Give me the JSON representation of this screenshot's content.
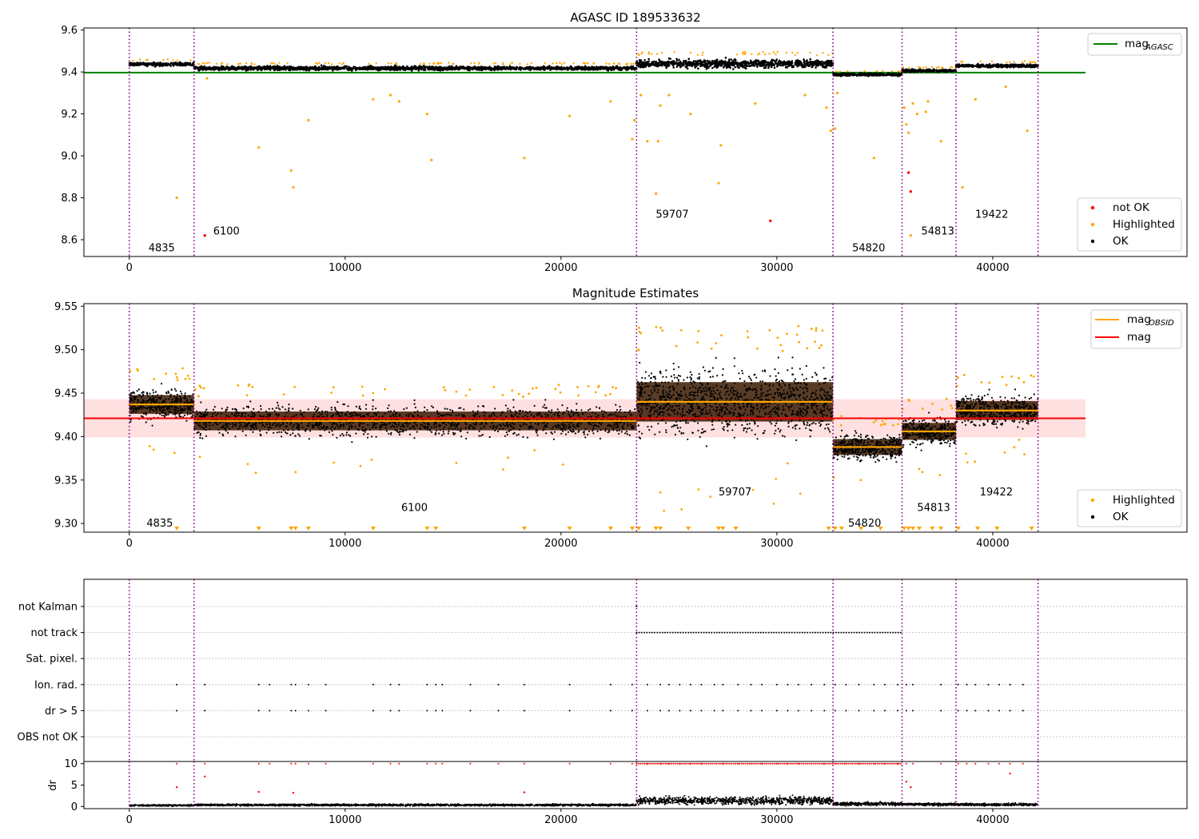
{
  "chart_data": [
    {
      "type": "scatter",
      "title": "AGASC ID 189533632",
      "xlim": [
        -2100,
        49000
      ],
      "ylim": [
        8.52,
        9.61
      ],
      "xticks": [
        0,
        10000,
        20000,
        30000,
        40000
      ],
      "yticks": [
        8.6,
        8.8,
        9.0,
        9.2,
        9.4,
        9.6
      ],
      "ytick_labels": [
        "8.6",
        "8.8",
        "9.0",
        "9.2",
        "9.4",
        "9.6"
      ],
      "grid": false,
      "reference_line": {
        "name": "mag_AGASC",
        "y": 9.397,
        "x": [
          -2100,
          44300
        ],
        "color": "#008000"
      },
      "segments": [
        {
          "x0": 0,
          "x1": 3000,
          "mag": 9.437,
          "spread": 0.012,
          "label": "4835",
          "label_y": 8.56
        },
        {
          "x0": 3000,
          "x1": 23500,
          "mag": 9.418,
          "spread": 0.013,
          "label": "6100",
          "label_y": 8.64
        },
        {
          "x0": 23500,
          "x1": 32600,
          "mag": 9.44,
          "spread": 0.028,
          "label": "59707",
          "label_y": 8.72
        },
        {
          "x0": 32600,
          "x1": 35800,
          "mag": 9.388,
          "spread": 0.009,
          "label": "54820",
          "label_y": 8.56
        },
        {
          "x0": 35800,
          "x1": 38300,
          "mag": 9.406,
          "spread": 0.009,
          "label": "54813",
          "label_y": 8.64
        },
        {
          "x0": 38300,
          "x1": 42100,
          "mag": 9.43,
          "spread": 0.011,
          "label": "19422",
          "label_y": 8.72
        }
      ],
      "dividers": [
        0,
        3000,
        23500,
        32600,
        35800,
        38300,
        42100
      ],
      "outliers_highlighted": [
        [
          2200,
          8.8
        ],
        [
          3600,
          9.37
        ],
        [
          6000,
          9.04
        ],
        [
          7500,
          8.93
        ],
        [
          7600,
          8.85
        ],
        [
          8300,
          9.17
        ],
        [
          11300,
          9.27
        ],
        [
          12100,
          9.29
        ],
        [
          12500,
          9.26
        ],
        [
          13800,
          9.2
        ],
        [
          14000,
          8.98
        ],
        [
          18300,
          8.99
        ],
        [
          20400,
          9.19
        ],
        [
          22300,
          9.26
        ],
        [
          23400,
          9.17
        ],
        [
          23300,
          9.08
        ],
        [
          23700,
          9.29
        ],
        [
          24000,
          9.07
        ],
        [
          24400,
          8.82
        ],
        [
          24600,
          9.24
        ],
        [
          24500,
          9.07
        ],
        [
          25000,
          9.29
        ],
        [
          26000,
          9.2
        ],
        [
          27400,
          9.05
        ],
        [
          27300,
          8.87
        ],
        [
          29000,
          9.25
        ],
        [
          31300,
          9.29
        ],
        [
          32300,
          9.23
        ],
        [
          32500,
          9.12
        ],
        [
          32700,
          9.13
        ],
        [
          32800,
          9.3
        ],
        [
          34500,
          8.99
        ],
        [
          35900,
          9.23
        ],
        [
          36000,
          9.15
        ],
        [
          36100,
          9.11
        ],
        [
          36200,
          8.62
        ],
        [
          36300,
          9.25
        ],
        [
          36500,
          9.2
        ],
        [
          36900,
          9.21
        ],
        [
          37000,
          9.26
        ],
        [
          37600,
          9.07
        ],
        [
          38600,
          8.85
        ],
        [
          39200,
          9.27
        ],
        [
          40600,
          9.33
        ],
        [
          41600,
          9.12
        ]
      ],
      "outliers_not_ok": [
        [
          3500,
          8.62
        ],
        [
          29700,
          8.69
        ],
        [
          36100,
          8.92
        ],
        [
          36200,
          8.83
        ]
      ],
      "legend_line": {
        "label": "mag",
        "sub": "AGASC"
      },
      "legend_points": [
        "not OK",
        "Highlighted",
        "OK"
      ],
      "colors": {
        "ok": "#000000",
        "highlighted": "#ffa500",
        "not_ok": "#ff0000",
        "divider": "#800080"
      }
    },
    {
      "type": "scatter",
      "title": "Magnitude Estimates",
      "xlim": [
        -2100,
        49000
      ],
      "ylim": [
        9.29,
        9.553
      ],
      "xticks": [
        0,
        10000,
        20000,
        30000,
        40000
      ],
      "yticks": [
        9.3,
        9.35,
        9.4,
        9.45,
        9.5,
        9.55
      ],
      "ytick_labels": [
        "9.30",
        "9.35",
        "9.40",
        "9.45",
        "9.50",
        "9.55"
      ],
      "grid": false,
      "mean_line": {
        "name": "mag",
        "y": 9.421,
        "band": [
          9.399,
          9.443
        ],
        "x": [
          -2100,
          44300
        ],
        "color": "#ff0000"
      },
      "segment_labels": [
        {
          "label": "4835",
          "x": 800,
          "y": 9.3
        },
        {
          "label": "6100",
          "x": 12600,
          "y": 9.318
        },
        {
          "label": "59707",
          "x": 27300,
          "y": 9.336
        },
        {
          "label": "54820",
          "x": 33300,
          "y": 9.3
        },
        {
          "label": "54813",
          "x": 36500,
          "y": 9.318
        },
        {
          "label": "19422",
          "x": 39400,
          "y": 9.336
        }
      ],
      "floor_markers": [
        2200,
        6000,
        7500,
        7700,
        8300,
        11300,
        13800,
        14200,
        18300,
        20400,
        22300,
        23300,
        23600,
        24400,
        24600,
        25900,
        27300,
        27500,
        28100,
        32400,
        32700,
        33000,
        33900,
        34800,
        35900,
        36100,
        36300,
        36600,
        37200,
        37600,
        38400,
        39300,
        40200,
        41800
      ],
      "legend_line": [
        {
          "label": "mag",
          "sub": "OBSID"
        },
        {
          "label": "mag",
          "sub": ""
        }
      ],
      "legend_points": [
        "Highlighted",
        "OK"
      ]
    },
    {
      "type": "scatter",
      "title": "",
      "xlim": [
        -2100,
        49000
      ],
      "xticks": [
        0,
        10000,
        20000,
        30000,
        40000
      ],
      "flag_rows": [
        "not Kalman",
        "not track",
        "Sat. pixel.",
        "Ion. rad.",
        "dr > 5",
        "OBS not OK"
      ],
      "flag_events": {
        "not Kalman": [
          [
            23500,
            23600
          ]
        ],
        "not track": [
          [
            23500,
            35800
          ]
        ],
        "Sat. pixel.": [],
        "Ion. rad.": [
          2200,
          3500,
          6000,
          6500,
          7500,
          7700,
          8300,
          9100,
          11300,
          12100,
          12500,
          13800,
          14200,
          14500,
          15800,
          17100,
          18300,
          20400,
          22300,
          23300,
          24000,
          24600,
          25000,
          25500,
          26000,
          26500,
          27100,
          27500,
          28200,
          28800,
          29300,
          30000,
          30500,
          31000,
          31600,
          32200,
          32700,
          33200,
          33800,
          34500,
          35000,
          35600,
          36000,
          36300,
          37600,
          38400,
          38800,
          39200,
          39800,
          40300,
          40800,
          41400
        ],
        "dr > 5": [
          2200,
          3500,
          6000,
          6500,
          7500,
          7700,
          8300,
          9100,
          11300,
          12100,
          12500,
          13800,
          14200,
          14500,
          15800,
          17100,
          18300,
          20400,
          22300,
          23300,
          24000,
          24600,
          25000,
          25500,
          26000,
          26500,
          27100,
          27500,
          28200,
          28800,
          29300,
          30000,
          30500,
          31000,
          31600,
          32200,
          32700,
          33200,
          33800,
          34500,
          35000,
          35600,
          36000,
          36300,
          37600,
          38400,
          38800,
          39200,
          39800,
          40300,
          40800,
          41400
        ],
        "OBS not OK": []
      }
    },
    {
      "type": "scatter",
      "title": "",
      "ylabel": "dr",
      "xlim": [
        -2100,
        49000
      ],
      "ylim": [
        -0.5,
        10.5
      ],
      "xticks": [
        0,
        10000,
        20000,
        30000,
        40000
      ],
      "yticks": [
        0,
        5,
        10
      ],
      "ytick_labels": [
        "0",
        "5",
        "10"
      ],
      "clipped_value": 10,
      "dr_segments": [
        {
          "x0": 0,
          "x1": 3000,
          "level": 0.25
        },
        {
          "x0": 3000,
          "x1": 23500,
          "level": 0.35
        },
        {
          "x0": 23500,
          "x1": 32600,
          "level": 1.4
        },
        {
          "x0": 32600,
          "x1": 35800,
          "level": 0.6
        },
        {
          "x0": 35800,
          "x1": 38300,
          "level": 0.5
        },
        {
          "x0": 38300,
          "x1": 42100,
          "level": 0.45
        }
      ],
      "red_points": [
        [
          2200,
          4.5
        ],
        [
          3500,
          7
        ],
        [
          6000,
          3.4
        ],
        [
          7600,
          3.2
        ],
        [
          18300,
          3.3
        ],
        [
          36000,
          5.8
        ],
        [
          36200,
          4.5
        ],
        [
          40800,
          7.7
        ]
      ]
    }
  ],
  "page": {
    "title": "AGASC ID 189533632",
    "title2": "Magnitude Estimates"
  }
}
